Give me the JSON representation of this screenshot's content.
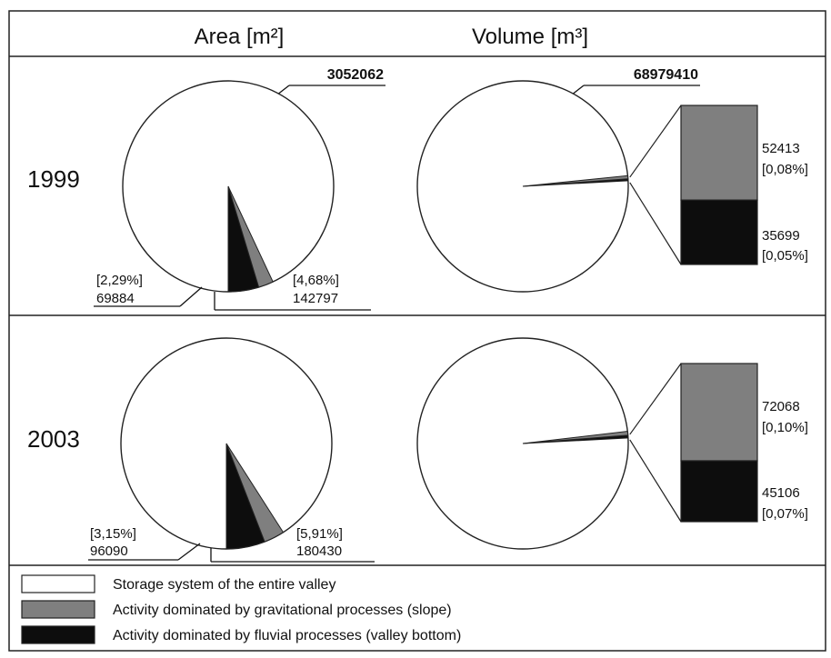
{
  "headers": {
    "area": "Area [m²]",
    "volume": "Volume [m³]"
  },
  "colors": {
    "storage": "#ffffff",
    "slope": "#7f7f7f",
    "fluvial": "#0d0d0d",
    "frame": "#222222"
  },
  "chart_data": [
    {
      "type": "pie",
      "year": "1999",
      "measure": "Area [m²]",
      "total_label": "3052062",
      "slices": [
        {
          "category": "Storage system of the entire valley",
          "value": 2839381,
          "percent": 93.03
        },
        {
          "category": "Activity dominated by gravitational processes (slope)",
          "value": 69884,
          "percent": 2.29,
          "pct_label": "[2,29%]",
          "val_label": "69884"
        },
        {
          "category": "Activity dominated by fluvial processes (valley bottom)",
          "value": 142797,
          "percent": 4.68,
          "pct_label": "[4,68%]",
          "val_label": "142797"
        }
      ]
    },
    {
      "type": "pie",
      "year": "1999",
      "measure": "Volume [m³]",
      "total_label": "68979410",
      "slices": [
        {
          "category": "Storage system of the entire valley",
          "value": 68891298,
          "percent": 99.87
        },
        {
          "category": "Activity dominated by gravitational processes (slope)",
          "value": 52413,
          "percent": 0.08,
          "val_label": "52413",
          "pct_label": "[0,08%]"
        },
        {
          "category": "Activity dominated by fluvial processes (valley bottom)",
          "value": 35699,
          "percent": 0.05,
          "val_label": "35699",
          "pct_label": "[0,05%]"
        }
      ]
    },
    {
      "type": "pie",
      "year": "2003",
      "measure": "Area [m²]",
      "total_label": "",
      "slices": [
        {
          "category": "Storage system of the entire valley",
          "value": 2775542,
          "percent": 90.94
        },
        {
          "category": "Activity dominated by gravitational processes (slope)",
          "value": 96090,
          "percent": 3.15,
          "pct_label": "[3,15%]",
          "val_label": "96090"
        },
        {
          "category": "Activity dominated by fluvial processes (valley bottom)",
          "value": 180430,
          "percent": 5.91,
          "pct_label": "[5,91%]",
          "val_label": "180430"
        }
      ]
    },
    {
      "type": "pie",
      "year": "2003",
      "measure": "Volume [m³]",
      "total_label": "",
      "slices": [
        {
          "category": "Storage system of the entire valley",
          "value": 68862236,
          "percent": 99.83
        },
        {
          "category": "Activity dominated by gravitational processes (slope)",
          "value": 72068,
          "percent": 0.1,
          "val_label": "72068",
          "pct_label": "[0,10%]"
        },
        {
          "category": "Activity dominated by fluvial processes (valley bottom)",
          "value": 45106,
          "percent": 0.07,
          "val_label": "45106",
          "pct_label": "[0,07%]"
        }
      ]
    }
  ],
  "legend": [
    {
      "label": "Storage system of the entire valley",
      "color": "#ffffff"
    },
    {
      "label": "Activity dominated by gravitational processes (slope)",
      "color": "#7f7f7f"
    },
    {
      "label": "Activity dominated by fluvial processes (valley bottom)",
      "color": "#0d0d0d"
    }
  ]
}
